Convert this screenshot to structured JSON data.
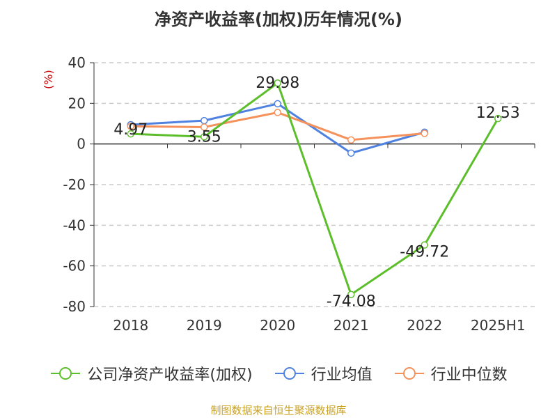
{
  "chart_data": {
    "type": "line",
    "title": "净资产收益率(加权)历年情况(%)",
    "ylabel": "(%)",
    "categories": [
      "2018",
      "2019",
      "2020",
      "2021",
      "2022",
      "2025H1"
    ],
    "ylim": [
      -80,
      40
    ],
    "yticks": [
      40,
      20,
      0,
      -20,
      -40,
      -60,
      -80
    ],
    "grid": true,
    "legend_position": "bottom",
    "series": [
      {
        "name": "公司净资产收益率(加权)",
        "color": "#5cbe2a",
        "values": [
          4.97,
          3.55,
          29.98,
          -74.08,
          -49.72,
          12.53
        ],
        "labels": [
          "4.97",
          "3.55",
          "29.98",
          "-74.08",
          "-49.72",
          "12.53"
        ]
      },
      {
        "name": "行业均值",
        "color": "#4f82e0",
        "values": [
          9.5,
          11.5,
          19.8,
          -4.5,
          5.8,
          null
        ]
      },
      {
        "name": "行业中位数",
        "color": "#f5915a",
        "values": [
          8.7,
          8.3,
          15.5,
          2.0,
          5.2,
          null
        ]
      }
    ]
  },
  "source": "制图数据来自恒生聚源数据库"
}
